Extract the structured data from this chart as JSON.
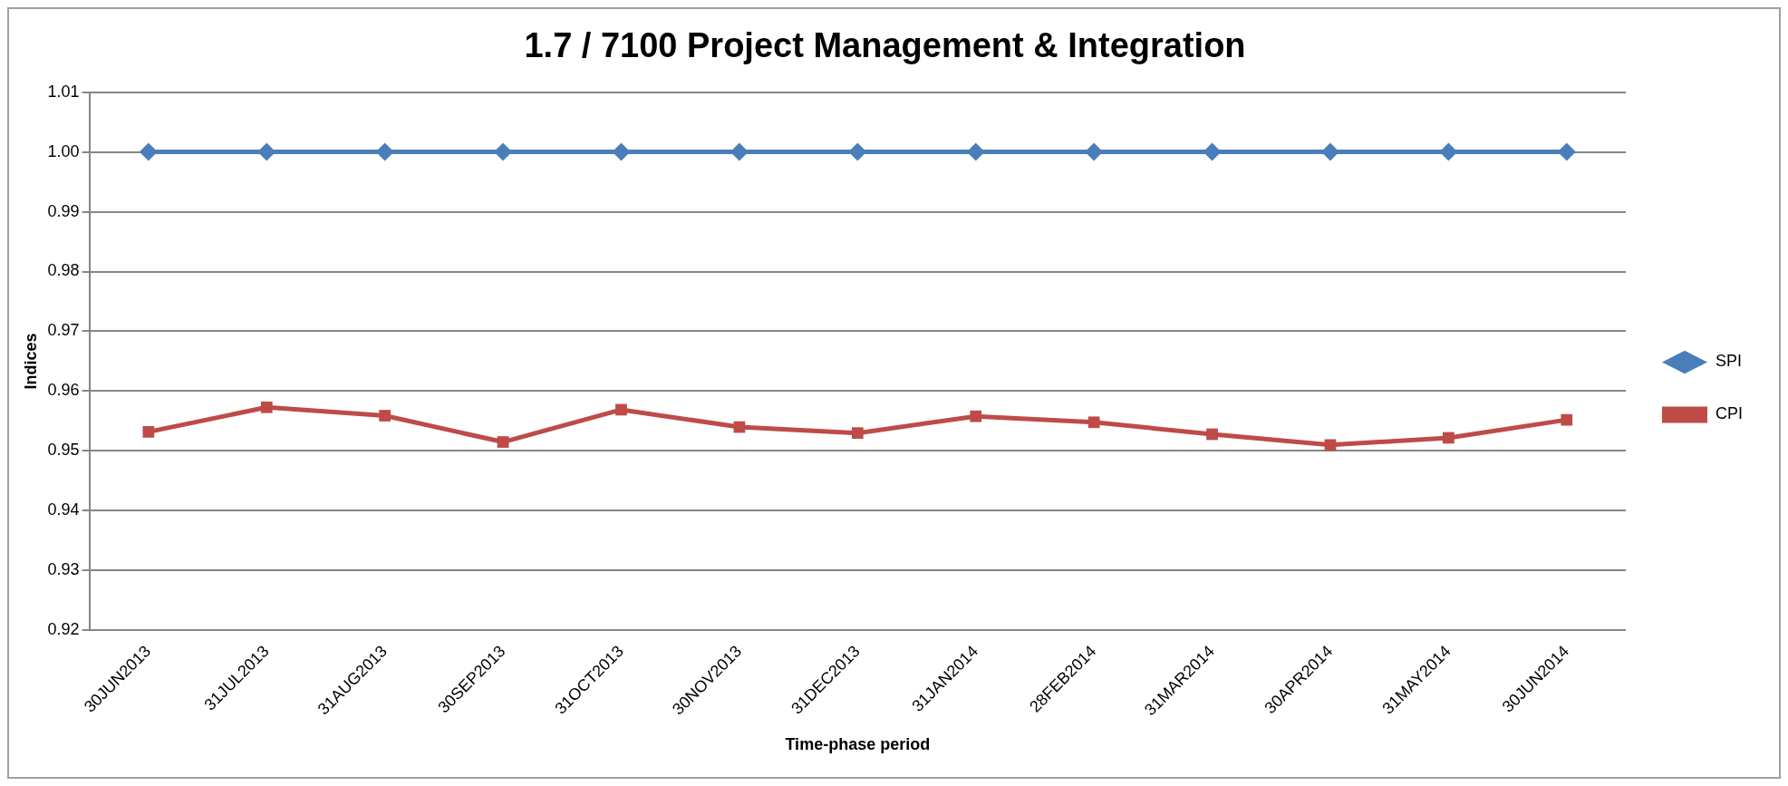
{
  "chart_data": {
    "type": "line",
    "title": "1.7 / 7100 Project Management & Integration",
    "xlabel": "Time-phase period",
    "ylabel": "Indices",
    "categories": [
      "30JUN2013",
      "31JUL2013",
      "31AUG2013",
      "30SEP2013",
      "31OCT2013",
      "30NOV2013",
      "31DEC2013",
      "31JAN2014",
      "28FEB2014",
      "31MAR2014",
      "30APR2014",
      "31MAY2014",
      "30JUN2014"
    ],
    "series": [
      {
        "name": "SPI",
        "color": "#4a7ebb",
        "marker": "diamond",
        "values": [
          1.0,
          1.0,
          1.0,
          1.0,
          1.0,
          1.0,
          1.0,
          1.0,
          1.0,
          1.0,
          1.0,
          1.0,
          1.0
        ]
      },
      {
        "name": "CPI",
        "color": "#be4b48",
        "marker": "square",
        "values": [
          0.9532,
          0.9573,
          0.9559,
          0.9515,
          0.9569,
          0.954,
          0.953,
          0.9558,
          0.9548,
          0.9528,
          0.951,
          0.9522,
          0.9552
        ]
      }
    ],
    "ylim": [
      0.92,
      1.01
    ],
    "yticks": [
      {
        "value": 0.92,
        "label": "0.92"
      },
      {
        "value": 0.93,
        "label": "0.93"
      },
      {
        "value": 0.94,
        "label": "0.94"
      },
      {
        "value": 0.95,
        "label": "0.95"
      },
      {
        "value": 0.96,
        "label": "0.96"
      },
      {
        "value": 0.97,
        "label": "0.97"
      },
      {
        "value": 0.98,
        "label": "0.98"
      },
      {
        "value": 0.99,
        "label": "0.99"
      },
      {
        "value": 1.0,
        "label": "1.00"
      },
      {
        "value": 1.01,
        "label": "1.01"
      }
    ],
    "grid": "y",
    "legend": "right",
    "line_style": "solid"
  }
}
